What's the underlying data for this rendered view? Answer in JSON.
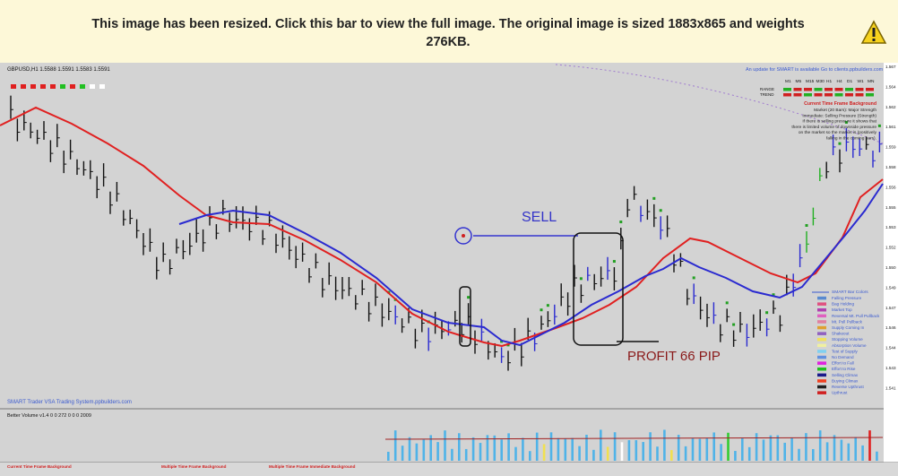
{
  "banner": {
    "text": "This image has been resized. Click this bar to view the full image. The original image is sized 1883x865 and weights 276KB."
  },
  "chart_window": {
    "symbol": "GBPUSD,H1 1.5588 1.5591 1.5583 1.5591",
    "update_notice": "An update for SMART is available Go to clients.ppbuilders.com",
    "footer_credit": "SMART Trader VSA Trading System.ppbuilders.com",
    "annotations": {
      "sell": "SELL",
      "profit": "PROFIT 66 PIP"
    },
    "timeframes": [
      "M1",
      "M5",
      "M15",
      "M30",
      "H1",
      "H4",
      "D1",
      "W1",
      "MN"
    ],
    "panel_rows": [
      "RANGE",
      "TREND"
    ],
    "background_title": "Current Time Frame Background",
    "background_text": [
      "Market (20 Bars): Major Strength",
      "Immediate: Selling Pressure (Strength)",
      "If there is selling pressure it shows that",
      "there is limited volume of downside pressure",
      "on the market so the market is (positively",
      "falling in the coming bars)."
    ],
    "legend_title": "SMART Bar Colors",
    "legend": [
      "Falling Pressure",
      "Bag Holding",
      "Market Top",
      "Reversal Mt. Pull Pullback",
      "Mt. Pull Pullback",
      "Supply Coming In",
      "Shakeout",
      "Stopping Volume",
      "Absorption Volume",
      "Test of Supply",
      "No Demand",
      "Effort to Fall",
      "Effort to Rise",
      "Selling Climax",
      "Buying Climax",
      "Reverse Upthrust",
      "Upthrust"
    ],
    "price_labels": [
      "1.567",
      "1.564",
      "1.562",
      "1.561",
      "1.559",
      "1.558",
      "1.556",
      "1.555",
      "1.553",
      "1.552",
      "1.550",
      "1.549",
      "1.547",
      "1.546",
      "1.544",
      "1.543",
      "1.541"
    ],
    "volume_label": "Better Volume v1.4 0 0 272 0 0 0 2009",
    "footer_sections": [
      "Current Time Frame Background",
      "Multiple Time Frame Background",
      "Multiple Time Frame Immediate Background"
    ]
  }
}
